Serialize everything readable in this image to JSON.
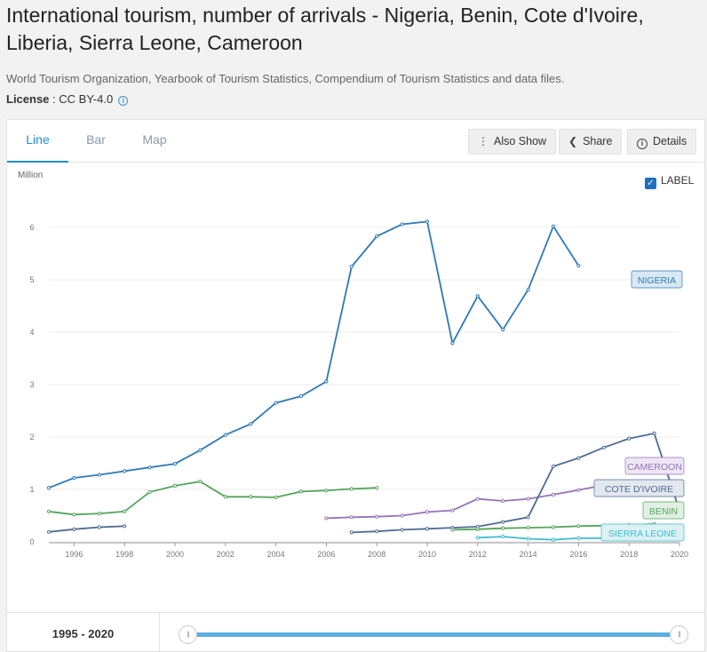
{
  "header": {
    "title": "International tourism, number of arrivals - Nigeria, Benin, Cote d'Ivoire, Liberia, Sierra Leone, Cameroon",
    "source": "World Tourism Organization, Yearbook of Tourism Statistics, Compendium of Tourism Statistics and data files.",
    "license_label": "License",
    "license_value": " : CC BY-4.0"
  },
  "tabs": [
    {
      "label": "Line"
    },
    {
      "label": "Bar"
    },
    {
      "label": "Map"
    }
  ],
  "toolbar": {
    "also_show": "Also Show",
    "share": "Share",
    "details": "Details"
  },
  "label_toggle": "LABEL",
  "range": {
    "label": "1995 - 2020",
    "start": 1995,
    "end": 2020
  },
  "colors": {
    "accent": "#1f8ed6",
    "nigeria": "#2f7ab5",
    "benin": "#54a55c",
    "cote_divoire": "#4e6b94",
    "cameroon": "#9673b8",
    "sierra_leone": "#3dbcd0",
    "liberia": "#4e6b94"
  },
  "chart_data": {
    "type": "line",
    "ylabel": "Million",
    "xlim": [
      1995,
      2020
    ],
    "ylim": [
      0,
      6.3
    ],
    "x_ticks": [
      1996,
      1998,
      2000,
      2002,
      2004,
      2006,
      2008,
      2010,
      2012,
      2014,
      2016,
      2018,
      2020
    ],
    "y_ticks": [
      0,
      1,
      2,
      3,
      4,
      5,
      6
    ],
    "series": [
      {
        "name": "NIGERIA",
        "color": "#2f7ab5",
        "label_bg": "#d8e8f4",
        "points": [
          [
            1995,
            1.03
          ],
          [
            1996,
            1.22
          ],
          [
            1997,
            1.28
          ],
          [
            1998,
            1.35
          ],
          [
            1999,
            1.42
          ],
          [
            2000,
            1.49
          ],
          [
            2001,
            1.75
          ],
          [
            2002,
            2.04
          ],
          [
            2003,
            2.25
          ],
          [
            2004,
            2.65
          ],
          [
            2005,
            2.78
          ],
          [
            2006,
            3.06
          ],
          [
            2007,
            5.25
          ],
          [
            2008,
            5.83
          ],
          [
            2009,
            6.06
          ],
          [
            2010,
            6.11
          ],
          [
            2011,
            3.79
          ],
          [
            2012,
            4.69
          ],
          [
            2013,
            4.05
          ],
          [
            2014,
            4.81
          ],
          [
            2015,
            6.02
          ],
          [
            2016,
            5.27
          ]
        ]
      },
      {
        "name": "CAMEROON",
        "color": "#9673b8",
        "label_bg": "#ede6f4",
        "points": [
          [
            2006,
            0.45
          ],
          [
            2007,
            0.47
          ],
          [
            2008,
            0.48
          ],
          [
            2009,
            0.5
          ],
          [
            2010,
            0.57
          ],
          [
            2011,
            0.6
          ],
          [
            2012,
            0.82
          ],
          [
            2013,
            0.78
          ],
          [
            2014,
            0.82
          ],
          [
            2015,
            0.9
          ],
          [
            2016,
            0.99
          ],
          [
            2017,
            1.08
          ],
          [
            2018,
            1.02
          ],
          [
            2019,
            1.08
          ]
        ]
      },
      {
        "name": "COTE D'IVOIRE",
        "color": "#4e6b94",
        "label_bg": "#e3e7ee",
        "points": [
          [
            2007,
            0.18
          ],
          [
            2008,
            0.2
          ],
          [
            2009,
            0.23
          ],
          [
            2010,
            0.25
          ],
          [
            2011,
            0.27
          ],
          [
            2012,
            0.29
          ],
          [
            2013,
            0.38
          ],
          [
            2014,
            0.47
          ],
          [
            2015,
            1.44
          ],
          [
            2016,
            1.6
          ],
          [
            2017,
            1.8
          ],
          [
            2018,
            1.97
          ],
          [
            2019,
            2.07
          ],
          [
            2020,
            0.6
          ]
        ]
      },
      {
        "name": "BENIN",
        "color": "#54a55c",
        "label_bg": "#e1f0e2",
        "points": [
          [
            1995,
            0.58
          ],
          [
            1996,
            0.52
          ],
          [
            1997,
            0.54
          ],
          [
            1998,
            0.58
          ],
          [
            1999,
            0.95
          ],
          [
            2000,
            1.07
          ],
          [
            2001,
            1.15
          ],
          [
            2002,
            0.86
          ],
          [
            2003,
            0.86
          ],
          [
            2004,
            0.85
          ],
          [
            2005,
            0.96
          ],
          [
            2006,
            0.98
          ],
          [
            2007,
            1.01
          ],
          [
            2008,
            1.03
          ],
          [
            2011,
            0.23
          ],
          [
            2012,
            0.24
          ],
          [
            2013,
            0.26
          ],
          [
            2014,
            0.27
          ],
          [
            2015,
            0.28
          ],
          [
            2016,
            0.3
          ],
          [
            2017,
            0.31
          ],
          [
            2018,
            0.32
          ],
          [
            2019,
            0.34
          ]
        ]
      },
      {
        "name": "SIERRA LEONE",
        "color": "#3dbcd0",
        "label_bg": "#dcf1f4",
        "points": [
          [
            2012,
            0.08
          ],
          [
            2013,
            0.1
          ],
          [
            2014,
            0.06
          ],
          [
            2015,
            0.04
          ],
          [
            2016,
            0.07
          ],
          [
            2017,
            0.07
          ],
          [
            2018,
            0.07
          ]
        ]
      },
      {
        "name": "",
        "color": "#4e6b94",
        "label_bg": "",
        "points": [
          [
            1995,
            0.19
          ],
          [
            1996,
            0.24
          ],
          [
            1997,
            0.28
          ],
          [
            1998,
            0.3
          ]
        ]
      }
    ]
  }
}
